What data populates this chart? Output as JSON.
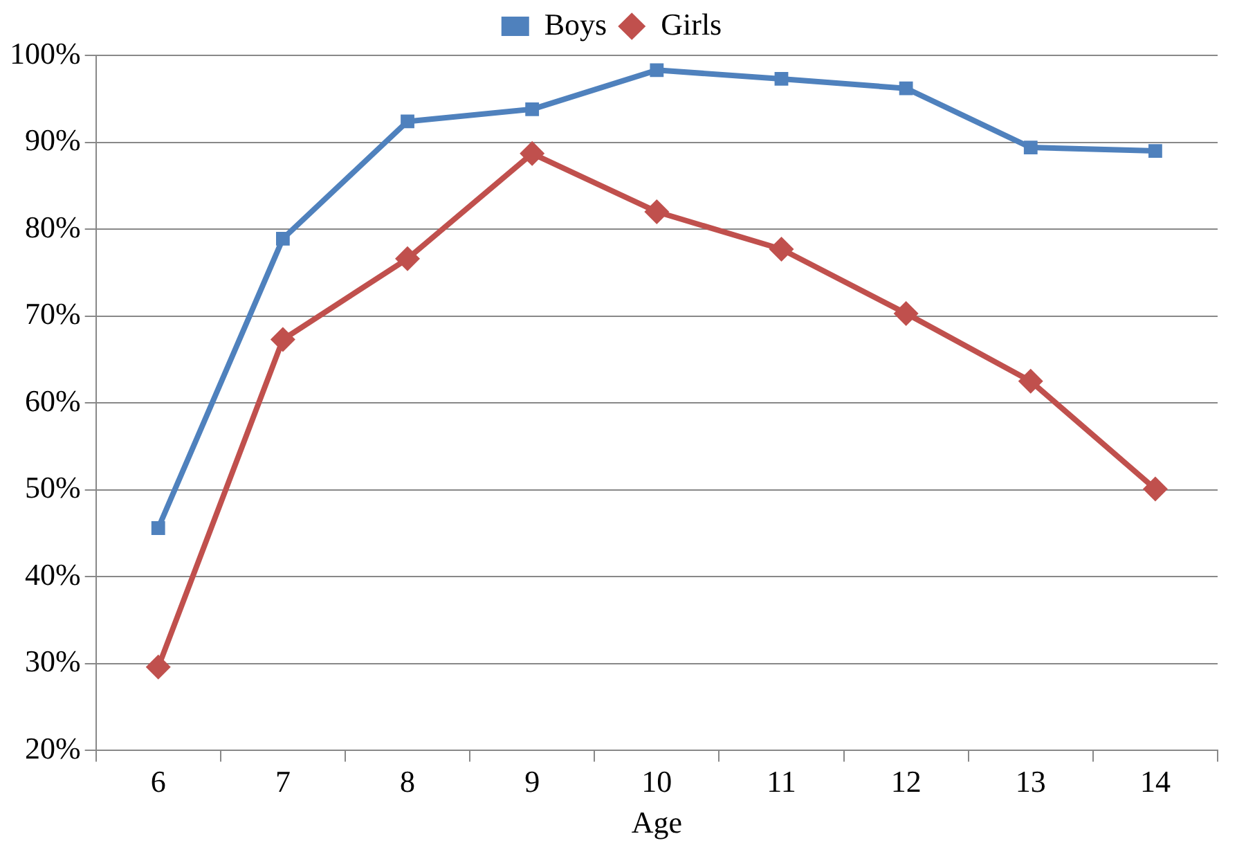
{
  "chart_data": {
    "type": "line",
    "xlabel": "Age",
    "categories": [
      "6",
      "7",
      "8",
      "9",
      "10",
      "11",
      "12",
      "13",
      "14"
    ],
    "series": [
      {
        "name": "Boys",
        "color": "#4f81bd",
        "marker": "square",
        "values": [
          45.6,
          78.9,
          92.4,
          93.8,
          98.3,
          97.3,
          96.2,
          89.4,
          89.0
        ]
      },
      {
        "name": "Girls",
        "color": "#c0504d",
        "marker": "diamond",
        "values": [
          29.6,
          67.3,
          76.6,
          88.7,
          82.0,
          77.7,
          70.3,
          62.5,
          50.1
        ]
      }
    ],
    "ylim": [
      20,
      100
    ],
    "yticks": [
      {
        "value": 20,
        "label": "20%"
      },
      {
        "value": 30,
        "label": "30%"
      },
      {
        "value": 40,
        "label": "40%"
      },
      {
        "value": 50,
        "label": "50%"
      },
      {
        "value": 60,
        "label": "60%"
      },
      {
        "value": 70,
        "label": "70%"
      },
      {
        "value": 80,
        "label": "80%"
      },
      {
        "value": 90,
        "label": "90%"
      },
      {
        "value": 100,
        "label": "100%"
      }
    ],
    "grid": "y",
    "legend": "top",
    "line_style": "solid"
  }
}
